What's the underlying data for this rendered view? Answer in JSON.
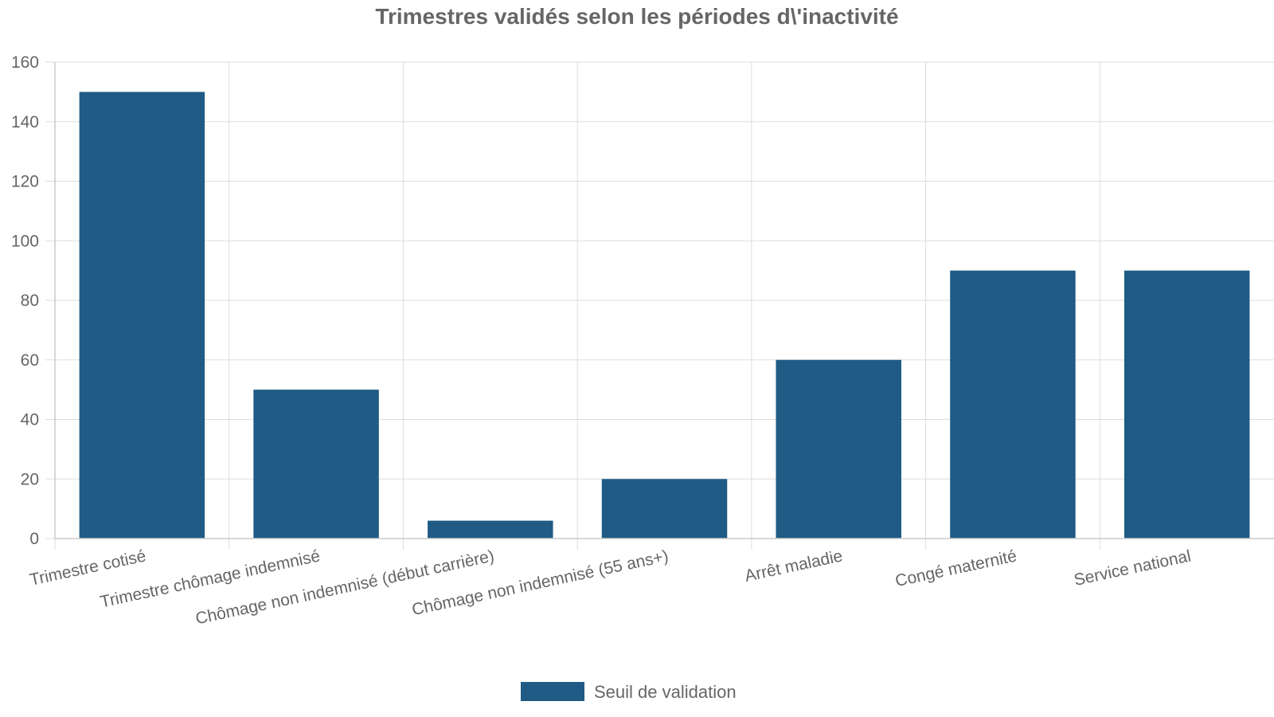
{
  "chart_data": {
    "type": "bar",
    "title": "Trimestres validés selon les périodes d\\'inactivité",
    "categories": [
      "Trimestre cotisé",
      "Trimestre chômage indemnisé",
      "Chômage non indemnisé (début carrière)",
      "Chômage non indemnisé (55 ans+)",
      "Arrêt maladie",
      "Congé maternité",
      "Service national"
    ],
    "series": [
      {
        "name": "Seuil de validation",
        "values": [
          150,
          50,
          6,
          20,
          60,
          90,
          90
        ],
        "color": "#1f5b85"
      }
    ],
    "xlabel": "",
    "ylabel": "",
    "ylim": [
      0,
      160
    ],
    "yticks": [
      0,
      20,
      40,
      60,
      80,
      100,
      120,
      140,
      160
    ],
    "grid": true,
    "legend_position": "bottom-center"
  }
}
